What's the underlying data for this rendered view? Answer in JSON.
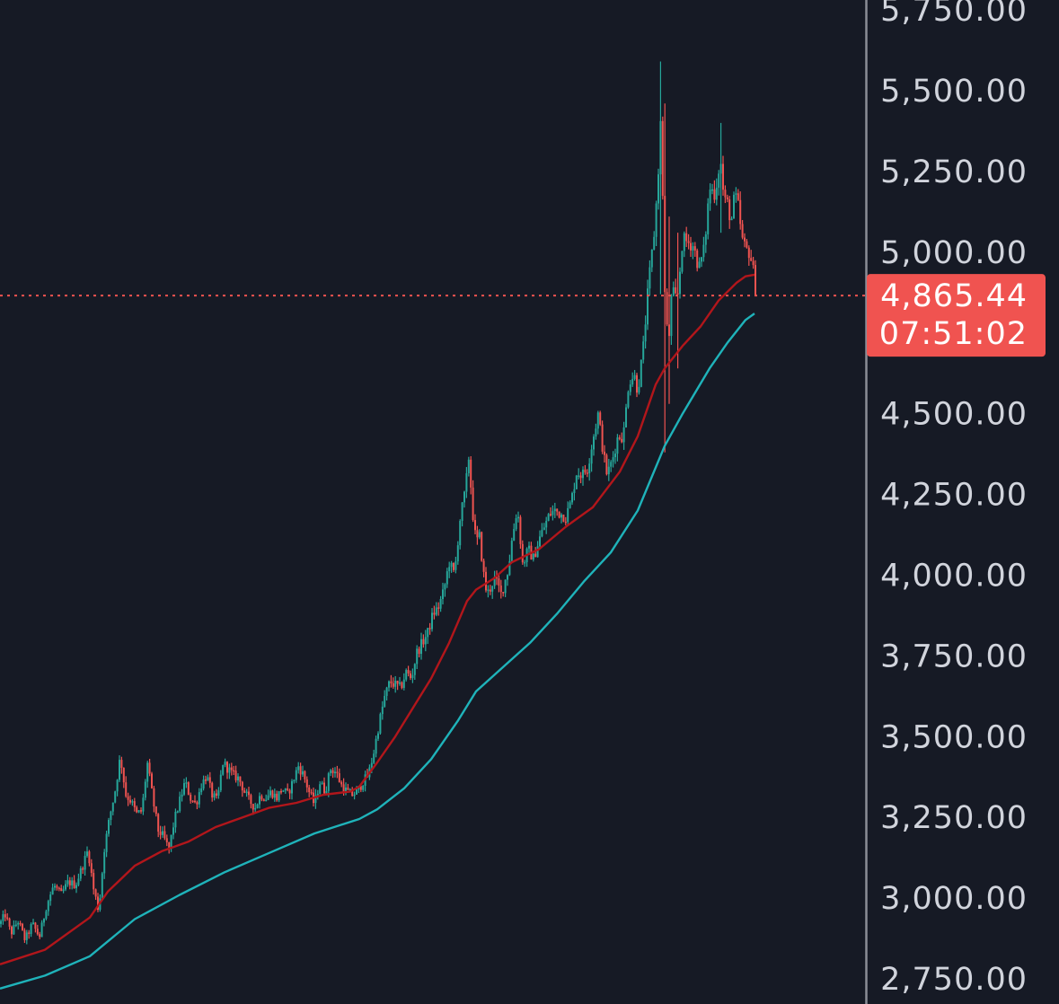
{
  "chart_data": {
    "type": "candlestick",
    "title": "",
    "xlabel": "",
    "ylabel": "",
    "ylim": [
      2730,
      5770
    ],
    "y_ticks": [
      "2,750.00",
      "3,000.00",
      "3,250.00",
      "3,500.00",
      "3,750.00",
      "4,000.00",
      "4,250.00",
      "4,500.00",
      "5,000.00",
      "5,250.00",
      "5,500.00",
      "5,750.00"
    ],
    "y_tick_values": [
      2750,
      3000,
      3250,
      3500,
      3750,
      4000,
      4250,
      4500,
      5000,
      5250,
      5500,
      5750
    ],
    "last_price": {
      "value": 4865.44,
      "label": "4,865.44",
      "countdown": "07:51:02"
    },
    "colors": {
      "background": "#161a25",
      "up": "#26a69a",
      "down": "#ef5350",
      "ma_fast": "#b2161b",
      "ma_slow": "#1fb3ba",
      "axis_text": "#d1d4dc",
      "axis_line": "#8a8d96",
      "price_badge": "#f05350"
    },
    "price_path": [
      [
        0,
        2920
      ],
      [
        6,
        2950
      ],
      [
        12,
        2890
      ],
      [
        20,
        2930
      ],
      [
        28,
        2870
      ],
      [
        36,
        2920
      ],
      [
        44,
        2880
      ],
      [
        52,
        2980
      ],
      [
        60,
        3040
      ],
      [
        68,
        3010
      ],
      [
        76,
        3050
      ],
      [
        84,
        3040
      ],
      [
        92,
        3100
      ],
      [
        98,
        3150
      ],
      [
        104,
        3030
      ],
      [
        110,
        2960
      ],
      [
        116,
        3150
      ],
      [
        122,
        3250
      ],
      [
        128,
        3330
      ],
      [
        134,
        3440
      ],
      [
        140,
        3320
      ],
      [
        146,
        3300
      ],
      [
        152,
        3260
      ],
      [
        158,
        3270
      ],
      [
        164,
        3420
      ],
      [
        170,
        3310
      ],
      [
        176,
        3210
      ],
      [
        182,
        3190
      ],
      [
        188,
        3150
      ],
      [
        194,
        3240
      ],
      [
        200,
        3300
      ],
      [
        206,
        3360
      ],
      [
        212,
        3310
      ],
      [
        218,
        3290
      ],
      [
        224,
        3350
      ],
      [
        230,
        3380
      ],
      [
        236,
        3320
      ],
      [
        242,
        3300
      ],
      [
        248,
        3420
      ],
      [
        254,
        3400
      ],
      [
        260,
        3380
      ],
      [
        266,
        3370
      ],
      [
        272,
        3330
      ],
      [
        278,
        3300
      ],
      [
        284,
        3280
      ],
      [
        290,
        3320
      ],
      [
        296,
        3310
      ],
      [
        302,
        3330
      ],
      [
        308,
        3310
      ],
      [
        314,
        3340
      ],
      [
        320,
        3320
      ],
      [
        326,
        3360
      ],
      [
        332,
        3410
      ],
      [
        338,
        3380
      ],
      [
        344,
        3330
      ],
      [
        350,
        3290
      ],
      [
        356,
        3360
      ],
      [
        362,
        3330
      ],
      [
        368,
        3400
      ],
      [
        374,
        3390
      ],
      [
        380,
        3350
      ],
      [
        386,
        3330
      ],
      [
        392,
        3320
      ],
      [
        398,
        3330
      ],
      [
        404,
        3360
      ],
      [
        410,
        3380
      ],
      [
        416,
        3450
      ],
      [
        422,
        3540
      ],
      [
        428,
        3620
      ],
      [
        434,
        3670
      ],
      [
        440,
        3660
      ],
      [
        446,
        3650
      ],
      [
        452,
        3700
      ],
      [
        458,
        3680
      ],
      [
        464,
        3760
      ],
      [
        470,
        3790
      ],
      [
        476,
        3820
      ],
      [
        482,
        3880
      ],
      [
        488,
        3900
      ],
      [
        494,
        3950
      ],
      [
        500,
        4040
      ],
      [
        506,
        4000
      ],
      [
        512,
        4170
      ],
      [
        518,
        4260
      ],
      [
        522,
        4370
      ],
      [
        526,
        4200
      ],
      [
        530,
        4100
      ],
      [
        534,
        4120
      ],
      [
        538,
        4010
      ],
      [
        542,
        3940
      ],
      [
        546,
        3960
      ],
      [
        550,
        3990
      ],
      [
        554,
        3970
      ],
      [
        558,
        3940
      ],
      [
        562,
        3980
      ],
      [
        566,
        4020
      ],
      [
        570,
        4110
      ],
      [
        576,
        4210
      ],
      [
        582,
        4030
      ],
      [
        588,
        4080
      ],
      [
        594,
        4050
      ],
      [
        600,
        4110
      ],
      [
        606,
        4150
      ],
      [
        612,
        4190
      ],
      [
        618,
        4200
      ],
      [
        624,
        4190
      ],
      [
        630,
        4180
      ],
      [
        636,
        4230
      ],
      [
        642,
        4320
      ],
      [
        648,
        4310
      ],
      [
        654,
        4330
      ],
      [
        660,
        4420
      ],
      [
        666,
        4500
      ],
      [
        672,
        4370
      ],
      [
        676,
        4310
      ],
      [
        682,
        4360
      ],
      [
        688,
        4430
      ],
      [
        694,
        4430
      ],
      [
        700,
        4600
      ],
      [
        706,
        4620
      ],
      [
        710,
        4570
      ],
      [
        716,
        4700
      ],
      [
        722,
        4900
      ],
      [
        728,
        5050
      ],
      [
        732,
        5200
      ],
      [
        736,
        5430
      ],
      [
        740,
        4880
      ],
      [
        744,
        4700
      ],
      [
        748,
        4880
      ],
      [
        754,
        4850
      ],
      [
        760,
        5040
      ],
      [
        766,
        5030
      ],
      [
        772,
        5020
      ],
      [
        778,
        4950
      ],
      [
        784,
        5010
      ],
      [
        790,
        5200
      ],
      [
        796,
        5180
      ],
      [
        802,
        5290
      ],
      [
        806,
        5160
      ],
      [
        810,
        5150
      ],
      [
        814,
        5090
      ],
      [
        818,
        5180
      ],
      [
        822,
        5140
      ],
      [
        826,
        5040
      ],
      [
        830,
        5010
      ],
      [
        834,
        5000
      ],
      [
        838,
        4960
      ],
      [
        841,
        4865.44
      ]
    ],
    "spikes": [
      {
        "x": 736,
        "high": 5590,
        "low": 4870
      },
      {
        "x": 740,
        "high": 5460,
        "low": 4380
      },
      {
        "x": 744,
        "high": 5110,
        "low": 4530
      },
      {
        "x": 754,
        "high": 5060,
        "low": 4640
      },
      {
        "x": 802,
        "high": 5400,
        "low": 5060
      }
    ],
    "series": [
      {
        "type": "line",
        "color": "#b2161b",
        "x": [
          0,
          50,
          100,
          120,
          150,
          180,
          210,
          240,
          270,
          300,
          330,
          360,
          390,
          400,
          420,
          440,
          460,
          480,
          500,
          520,
          530,
          550,
          570,
          600,
          630,
          660,
          690,
          710,
          730,
          740,
          760,
          780,
          800,
          820,
          830,
          840
        ],
        "values": [
          2795,
          2840,
          2940,
          3020,
          3100,
          3145,
          3175,
          3220,
          3250,
          3280,
          3295,
          3320,
          3330,
          3345,
          3420,
          3500,
          3590,
          3680,
          3790,
          3920,
          3955,
          3990,
          4040,
          4080,
          4150,
          4210,
          4320,
          4430,
          4590,
          4640,
          4710,
          4770,
          4850,
          4905,
          4925,
          4930
        ]
      },
      {
        "type": "line",
        "color": "#1fb3ba",
        "x": [
          0,
          50,
          100,
          150,
          200,
          250,
          300,
          350,
          400,
          420,
          450,
          480,
          510,
          530,
          560,
          590,
          620,
          650,
          680,
          710,
          740,
          760,
          790,
          810,
          830,
          840
        ],
        "values": [
          2720,
          2760,
          2820,
          2935,
          3010,
          3080,
          3140,
          3200,
          3245,
          3275,
          3340,
          3430,
          3550,
          3640,
          3715,
          3790,
          3880,
          3980,
          4070,
          4200,
          4400,
          4500,
          4640,
          4720,
          4790,
          4810
        ]
      }
    ]
  }
}
